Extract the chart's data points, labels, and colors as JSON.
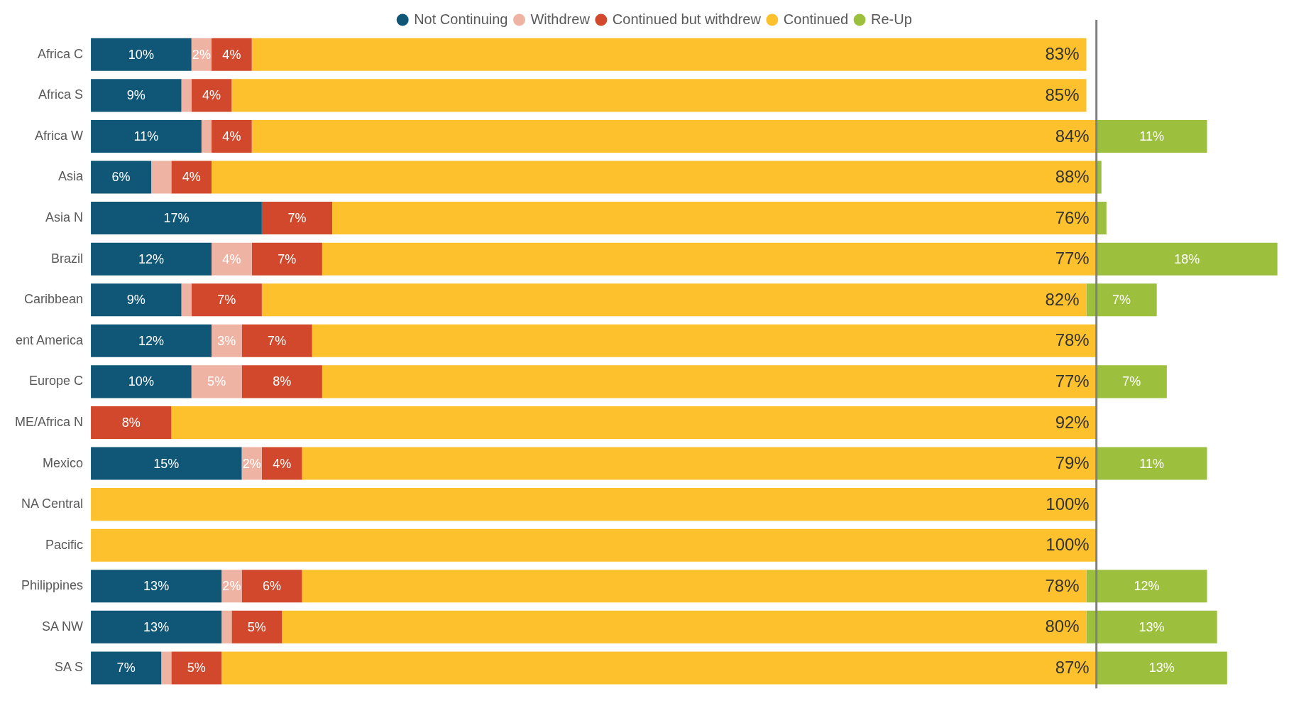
{
  "chart_data": {
    "type": "bar",
    "orientation": "horizontal",
    "stacked": true,
    "legend": "top",
    "categories": [
      "Africa C",
      "Africa S",
      "Africa W",
      "Asia",
      "Asia N",
      "Brazil",
      "Caribbean",
      "ent America",
      "Europe C",
      "ME/Africa N",
      "Mexico",
      "NA Central",
      "Pacific",
      "Philippines",
      "SA NW",
      "SA S"
    ],
    "series": [
      {
        "name": "Not Continuing",
        "color": "#0f5677",
        "values": [
          10,
          9,
          11,
          6,
          17,
          12,
          9,
          12,
          10,
          null,
          15,
          null,
          null,
          13,
          13,
          7
        ],
        "value_labels": [
          "10%",
          "9%",
          "11%",
          "6%",
          "17%",
          "12%",
          "9%",
          "12%",
          "10%",
          null,
          "15%",
          null,
          null,
          "13%",
          "13%",
          "7%"
        ]
      },
      {
        "name": "Withdrew",
        "color": "#efb3a4",
        "values": [
          2,
          1,
          1,
          2,
          null,
          4,
          1,
          3,
          5,
          null,
          2,
          null,
          null,
          2,
          1,
          1
        ],
        "value_labels": [
          "2%",
          null,
          null,
          null,
          null,
          "4%",
          null,
          "3%",
          "5%",
          null,
          "2%",
          null,
          null,
          "2%",
          null,
          null
        ]
      },
      {
        "name": "Continued but withdrew",
        "color": "#d1482c",
        "values": [
          4,
          4,
          4,
          4,
          7,
          7,
          7,
          7,
          8,
          8,
          4,
          null,
          null,
          6,
          5,
          5
        ],
        "value_labels": [
          "4%",
          "4%",
          "4%",
          "4%",
          "7%",
          "7%",
          "7%",
          "7%",
          "8%",
          "8%",
          "4%",
          null,
          null,
          "6%",
          "5%",
          "5%"
        ]
      },
      {
        "name": "Continued",
        "color": "#fdc12e",
        "values": [
          83,
          85,
          84,
          88,
          76,
          77,
          82,
          78,
          77,
          92,
          79,
          100,
          100,
          78,
          80,
          87
        ],
        "value_labels": [
          "83%",
          "85%",
          "84%",
          "88%",
          "76%",
          "77%",
          "82%",
          "78%",
          "77%",
          "92%",
          "79%",
          "100%",
          "100%",
          "78%",
          "80%",
          "87%"
        ]
      },
      {
        "name": "Re-Up",
        "color": "#9cbf3d",
        "values": [
          null,
          null,
          11,
          0.5,
          1,
          18,
          7,
          null,
          7,
          null,
          11,
          null,
          null,
          12,
          13,
          13
        ],
        "value_labels": [
          null,
          null,
          "11%",
          null,
          null,
          "18%",
          "7%",
          null,
          "7%",
          null,
          "11%",
          null,
          null,
          "12%",
          "13%",
          "13%"
        ]
      }
    ],
    "ref_lines": [
      {
        "axis": "x",
        "value": 100,
        "color": "#7f7f7f"
      }
    ]
  }
}
